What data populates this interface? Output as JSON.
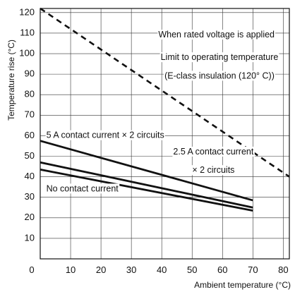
{
  "chart_data": {
    "type": "line",
    "xlabel": "Ambient temperature (°C)",
    "ylabel": "Temperature rise (°C)",
    "xlim": [
      0,
      82
    ],
    "ylim": [
      0,
      122
    ],
    "x_ticks": [
      0,
      10,
      20,
      30,
      40,
      50,
      60,
      70,
      80
    ],
    "y_ticks": [
      10,
      20,
      30,
      40,
      50,
      60,
      70,
      80,
      90,
      100,
      110,
      120
    ],
    "x_tick_labels": [
      "0",
      "10",
      "20",
      "30",
      "40",
      "50",
      "60",
      "70",
      "80"
    ],
    "y_tick_labels": [
      "10",
      "20",
      "30",
      "40",
      "50",
      "60",
      "70",
      "80",
      "90",
      "100",
      "110",
      "120"
    ],
    "grid": true,
    "series": [
      {
        "name": "Limit to operating temperature (E-class insulation (120° C))",
        "style": "dashed",
        "color": "#111111",
        "x": [
          0,
          82
        ],
        "y": [
          122,
          40
        ]
      },
      {
        "name": "5 A contact current × 2 circuits",
        "style": "solid",
        "color": "#111111",
        "x": [
          0,
          70
        ],
        "y": [
          57.5,
          28.5
        ]
      },
      {
        "name": "2.5 A contact current × 2 circuits",
        "style": "solid",
        "color": "#111111",
        "x": [
          0,
          70
        ],
        "y": [
          47,
          25
        ]
      },
      {
        "name": "No contact current",
        "style": "solid",
        "color": "#111111",
        "x": [
          0,
          70
        ],
        "y": [
          43.5,
          23.5
        ]
      }
    ],
    "annotations": [
      {
        "text": "When rated voltage is applied",
        "x": 58,
        "y": 109,
        "anchor": "middle"
      },
      {
        "text": "Limit to operating temperature",
        "x": 59,
        "y": 98,
        "anchor": "middle"
      },
      {
        "text": "(E-class insulation (120° C))",
        "x": 59,
        "y": 89,
        "anchor": "middle"
      },
      {
        "text": "5 A contact current × 2 circuits",
        "x": 2,
        "y": 60,
        "anchor": "start"
      },
      {
        "text": "2.5 A contact current",
        "x": 57,
        "y": 52,
        "anchor": "middle"
      },
      {
        "text": "× 2 circuits",
        "x": 57,
        "y": 43,
        "anchor": "middle"
      },
      {
        "text": "No contact current",
        "x": 2,
        "y": 34,
        "anchor": "start"
      }
    ]
  }
}
